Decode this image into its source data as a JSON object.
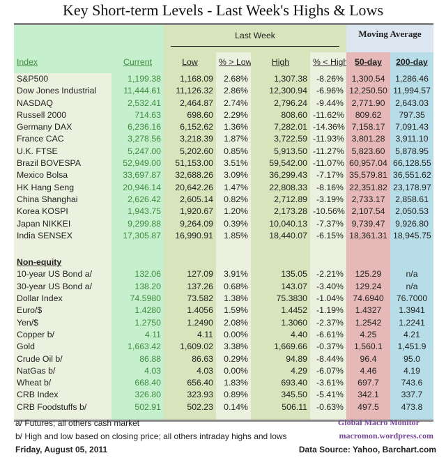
{
  "title": "Key Short-term Levels -  Last Week's Highs & Lows",
  "header": {
    "last_week": "Last Week",
    "moving_average": "Moving Average",
    "columns": [
      "Index",
      "Current",
      "Low",
      "% > Low",
      "High",
      "% < High",
      "50-day",
      "200-day"
    ]
  },
  "equity_rows": [
    [
      "S&P500",
      "1,199.38",
      "1,168.09",
      "2.68%",
      "1,307.38",
      "-8.26%",
      "1,300.54",
      "1,286.46"
    ],
    [
      "Dow Jones Industrial",
      "11,444.61",
      "11,126.32",
      "2.86%",
      "12,300.94",
      "-6.96%",
      "12,250.50",
      "11,994.57"
    ],
    [
      "NASDAQ",
      "2,532.41",
      "2,464.87",
      "2.74%",
      "2,796.24",
      "-9.44%",
      "2,771.90",
      "2,643.03"
    ],
    [
      "Russell 2000",
      "714.63",
      "698.60",
      "2.29%",
      "808.60",
      "-11.62%",
      "809.62",
      "797.35"
    ],
    [
      "Germany DAX",
      "6,236.16",
      "6,152.62",
      "1.36%",
      "7,282.01",
      "-14.36%",
      "7,158.17",
      "7,091.43"
    ],
    [
      "France CAC",
      "3,278.56",
      "3,218.39",
      "1.87%",
      "3,722.59",
      "-11.93%",
      "3,801.28",
      "3,911.10"
    ],
    [
      "U.K. FTSE",
      "5,247.00",
      "5,202.60",
      "0.85%",
      "5,913.50",
      "-11.27%",
      "5,823.60",
      "5,878.95"
    ],
    [
      "Brazil BOVESPA",
      "52,949.00",
      "51,153.00",
      "3.51%",
      "59,542.00",
      "-11.07%",
      "60,957.04",
      "66,128.55"
    ],
    [
      "Mexico Bolsa",
      "33,697.87",
      "32,688.26",
      "3.09%",
      "36,299.43",
      "-7.17%",
      "35,579.81",
      "36,551.62"
    ],
    [
      "HK  Hang Seng",
      "20,946.14",
      "20,642.26",
      "1.47%",
      "22,808.33",
      "-8.16%",
      "22,351.82",
      "23,178.97"
    ],
    [
      "China Shanghai",
      "2,626.42",
      "2,605.14",
      "0.82%",
      "2,712.89",
      "-3.19%",
      "2,733.17",
      "2,858.61"
    ],
    [
      "Korea KOSPI",
      "1,943.75",
      "1,920.67",
      "1.20%",
      "2,173.28",
      "-10.56%",
      "2,107.54",
      "2,050.53"
    ],
    [
      "Japan NIKKEI",
      "9,299.88",
      "9,264.09",
      "0.39%",
      "10,040.13",
      "-7.37%",
      "9,739.47",
      "9,926.80"
    ],
    [
      "India SENSEX",
      "17,305.87",
      "16,990.91",
      "1.85%",
      "18,440.07",
      "-6.15%",
      "18,361.31",
      "18,945.75"
    ]
  ],
  "non_equity_label": "Non-equity",
  "non_equity_rows": [
    [
      "10-year US Bond  a/",
      "132.06",
      "127.09",
      "3.91%",
      "135.05",
      "-2.21%",
      "125.29",
      "n/a"
    ],
    [
      "30-year US Bond  a/",
      "138.20",
      "137.26",
      "0.68%",
      "143.07",
      "-3.40%",
      "129.24",
      "n/a"
    ],
    [
      "Dollar Index",
      "74.5980",
      "73.582",
      "1.38%",
      "75.3830",
      "-1.04%",
      "74.6940",
      "76.7000"
    ],
    [
      "Euro/$",
      "1.4280",
      "1.4056",
      "1.59%",
      "1.4452",
      "-1.19%",
      "1.4327",
      "1.3941"
    ],
    [
      "Yen/$",
      "1.2750",
      "1.2490",
      "2.08%",
      "1.3060",
      "-2.37%",
      "1.2542",
      "1.2241"
    ],
    [
      "Copper  b/",
      "4.11",
      "4.11",
      "0.00%",
      "4.40",
      "-6.61%",
      "4.25",
      "4.21"
    ],
    [
      "Gold",
      "1,663.42",
      "1,609.02",
      "3.38%",
      "1,669.66",
      "-0.37%",
      "1,560.1",
      "1,451.9"
    ],
    [
      "Crude Oil  b/",
      "86.88",
      "86.63",
      "0.29%",
      "94.89",
      "-8.44%",
      "96.4",
      "95.0"
    ],
    [
      "NatGas  b/",
      "4.03",
      "4.03",
      "0.00%",
      "4.29",
      "-6.07%",
      "4.46",
      "4.19"
    ],
    [
      "Wheat  b/",
      "668.40",
      "656.40",
      "1.83%",
      "693.40",
      "-3.61%",
      "697.7",
      "743.6"
    ],
    [
      "CRB Index",
      "326.80",
      "323.93",
      "0.89%",
      "345.50",
      "-5.41%",
      "342.1",
      "337.7"
    ],
    [
      "CRB Foodstuffs  b/",
      "502.91",
      "502.23",
      "0.14%",
      "506.11",
      "-0.63%",
      "497.5",
      "473.8"
    ]
  ],
  "footer": {
    "note_a": "a/  Futures; all others cash market",
    "note_b": "b/  High and low based on closing price;  all others intraday highs and lows",
    "date": "Friday, August 05, 2011",
    "brand": "Global Macro Monitor",
    "site": "macromon.wordpress.com",
    "source": "Data Source: Yahoo, Barchart.com"
  }
}
